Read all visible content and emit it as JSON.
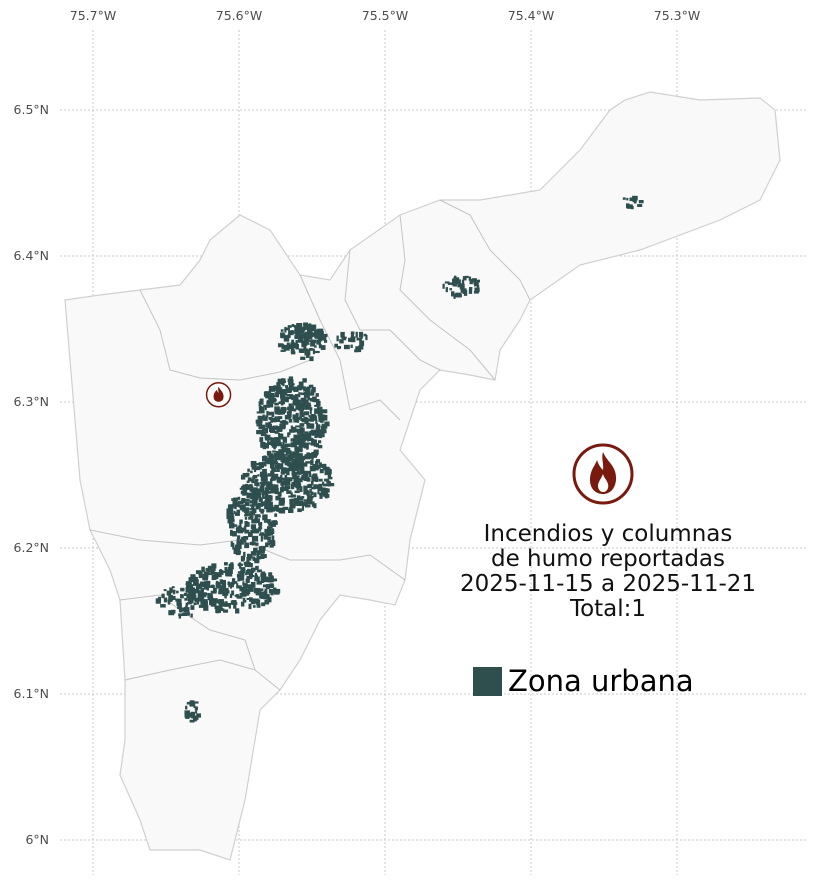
{
  "map": {
    "x_ticks": [
      "75.7°W",
      "75.6°W",
      "75.5°W",
      "75.4°W",
      "75.3°W"
    ],
    "x_tick_values": [
      -75.7,
      -75.6,
      -75.5,
      -75.4,
      -75.3
    ],
    "y_ticks": [
      "6.5°N",
      "6.4°N",
      "6.3°N",
      "6.2°N",
      "6.1°N",
      "6°N"
    ],
    "y_tick_values": [
      6.5,
      6.4,
      6.3,
      6.2,
      6.1,
      6.0
    ],
    "grid": true,
    "region_fill": "#f9f9f9",
    "boundary_color": "#bdbdbd",
    "urban_color": "#2f4f4f",
    "fire_color": "#7a1a0e",
    "fire_points": [
      {
        "lon": -75.614,
        "lat": 6.305,
        "icon": "fire-icon"
      }
    ]
  },
  "title": {
    "lines": [
      "Incendios y columnas",
      "de humo reportadas",
      "2025-11-15 a 2025-11-21",
      "Total:1"
    ],
    "icon": "fire-icon"
  },
  "legend": {
    "label": "Zona urbana"
  }
}
